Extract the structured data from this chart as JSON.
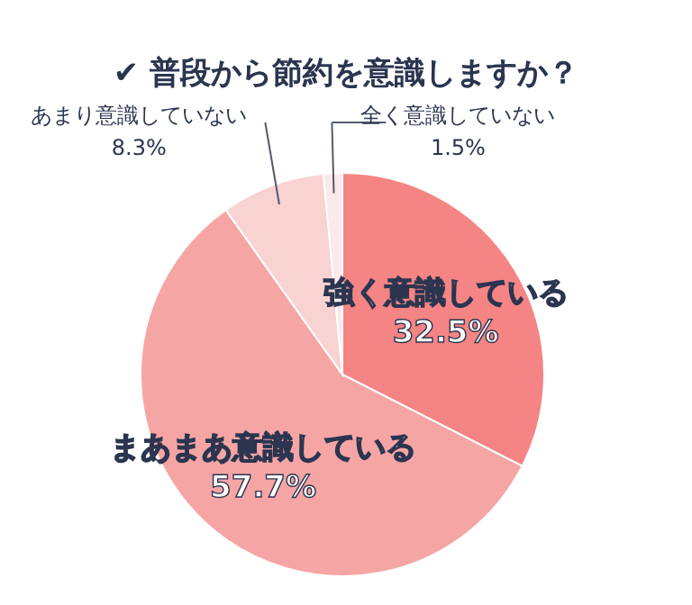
{
  "chart_data": {
    "type": "pie",
    "title": "✔ 普段から節約を意識しますか？",
    "categories": [
      "強く意識している",
      "まあまあ意識している",
      "あまり意識していない",
      "全く意識していない"
    ],
    "values": [
      32.5,
      57.7,
      8.3,
      1.5
    ],
    "value_labels": [
      "32.5%",
      "57.7%",
      "8.3%",
      "1.5%"
    ],
    "colors": [
      "#f58484",
      "#f6a5a5",
      "#f9d2d2",
      "#fce9e9"
    ]
  }
}
